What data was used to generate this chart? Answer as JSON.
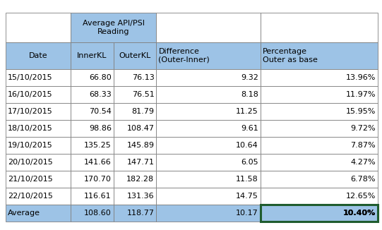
{
  "merged_header": "Average API/PSI\nReading",
  "col_headers": [
    "Date",
    "InnerKL",
    "OuterKL",
    "Difference\n(Outer-Inner)",
    "Percentage\nOuter as base"
  ],
  "rows": [
    [
      "15/10/2015",
      "66.80",
      "76.13",
      "9.32",
      "13.96%"
    ],
    [
      "16/10/2015",
      "68.33",
      "76.51",
      "8.18",
      "11.97%"
    ],
    [
      "17/10/2015",
      "70.54",
      "81.79",
      "11.25",
      "15.95%"
    ],
    [
      "18/10/2015",
      "98.86",
      "108.47",
      "9.61",
      "9.72%"
    ],
    [
      "19/10/2015",
      "135.25",
      "145.89",
      "10.64",
      "7.87%"
    ],
    [
      "20/10/2015",
      "141.66",
      "147.71",
      "6.05",
      "4.27%"
    ],
    [
      "21/10/2015",
      "170.70",
      "182.28",
      "11.58",
      "6.78%"
    ],
    [
      "22/10/2015",
      "116.61",
      "131.36",
      "14.75",
      "12.65%"
    ]
  ],
  "avg_row": [
    "Average",
    "108.60",
    "118.77",
    "10.17",
    "10.40%"
  ],
  "header_bg": "#9DC3E6",
  "avg_row_bg": "#9DC3E6",
  "white_bg": "#FFFFFF",
  "highlight_border": "#1F5C2E",
  "text_color": "#000000",
  "fontsize": 8.0,
  "fig_width": 5.41,
  "fig_height": 3.26,
  "dpi": 100
}
